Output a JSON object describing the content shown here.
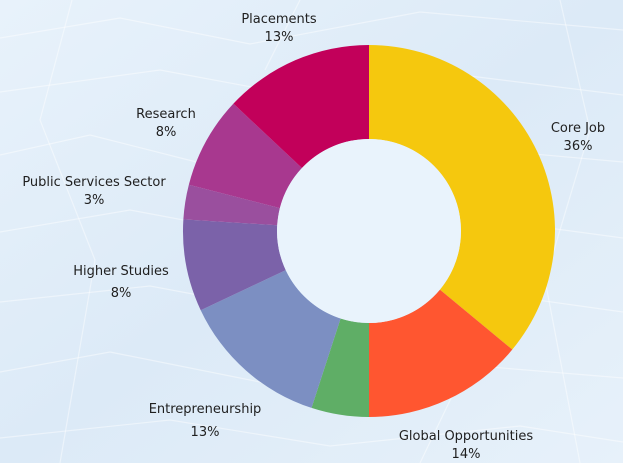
{
  "chart_data": {
    "type": "pie",
    "variant": "donut",
    "title": "",
    "background": "light blue crumpled paper texture",
    "slices": [
      {
        "label": "Core Job",
        "value": 36,
        "value_label": "36%",
        "color": "#F5C80E"
      },
      {
        "label": "Global Opportunities",
        "value": 14,
        "value_label": "14%",
        "color": "#FF5630"
      },
      {
        "label": "",
        "value": 5,
        "value_label": "",
        "color": "#5FAE66"
      },
      {
        "label": "Entrepreneurship",
        "value": 13,
        "value_label": "13%",
        "color": "#7C8FC2"
      },
      {
        "label": "Higher Studies",
        "value": 8,
        "value_label": "8%",
        "color": "#7B62A9"
      },
      {
        "label": "Public Services Sector",
        "value": 3,
        "value_label": "3%",
        "color": "#9A4F9E"
      },
      {
        "label": "Research",
        "value": 8,
        "value_label": "8%",
        "color": "#A8388F"
      },
      {
        "label": "Placements",
        "value": 13,
        "value_label": "13%",
        "color": "#C2005A"
      }
    ]
  }
}
